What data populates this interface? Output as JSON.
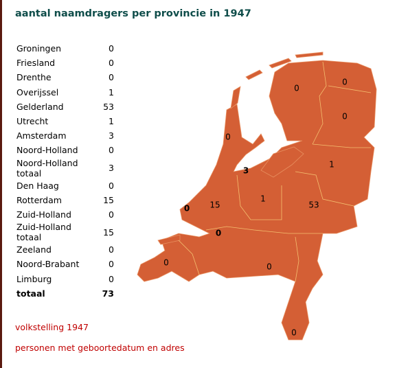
{
  "title": "aantal naamdragers per provincie in 1947",
  "table": {
    "rows": [
      [
        "Groningen",
        0
      ],
      [
        "Friesland",
        0
      ],
      [
        "Drenthe",
        0
      ],
      [
        "Overijssel",
        1
      ],
      [
        "Gelderland",
        53
      ],
      [
        "Utrecht",
        1
      ],
      [
        "Amsterdam",
        3
      ],
      [
        "Noord-Holland",
        0
      ],
      [
        "Noord-Holland totaal",
        3
      ],
      [
        "Den Haag",
        0
      ],
      [
        "Rotterdam",
        15
      ],
      [
        "Zuid-Holland",
        0
      ],
      [
        "Zuid-Holland totaal",
        15
      ],
      [
        "Zeeland",
        0
      ],
      [
        "Noord-Brabant",
        0
      ],
      [
        "Limburg",
        0
      ],
      [
        "totaal",
        73
      ]
    ]
  },
  "map": {
    "labels": [
      "0",
      "0",
      "0",
      "1",
      "53",
      "1",
      "3",
      "0",
      "0",
      "15",
      "0",
      "0",
      "0",
      "0"
    ]
  },
  "notes": [
    "volkstelling 1947",
    "personen met geboortedatum en adres"
  ]
}
